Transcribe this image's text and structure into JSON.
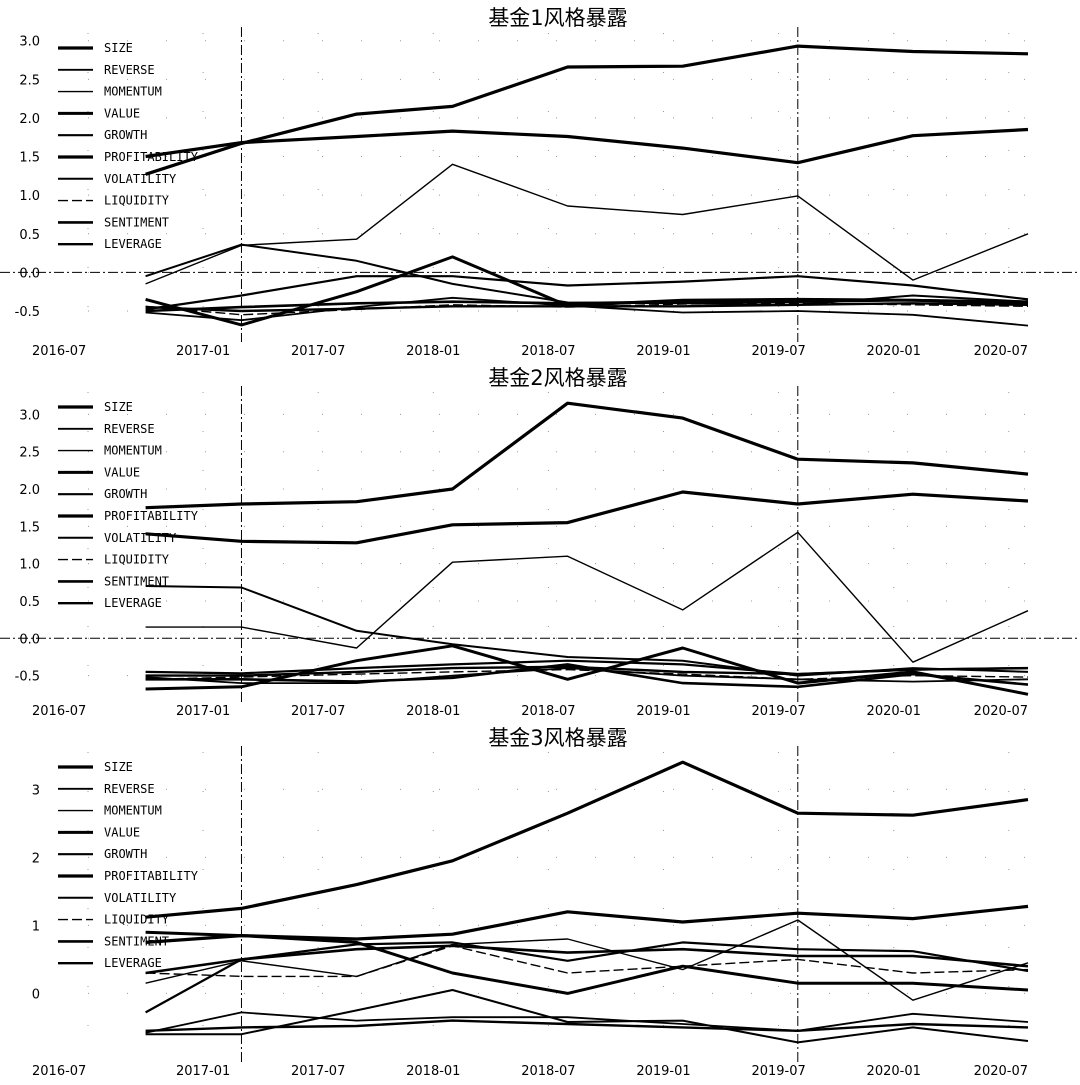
{
  "chart_data": [
    {
      "type": "line",
      "title": "基金1风格暴露",
      "xlabel": "",
      "ylabel": "",
      "x": [
        "2016-10",
        "2017-03",
        "2017-09",
        "2018-02",
        "2018-08",
        "2019-02",
        "2019-08",
        "2020-02",
        "2020-08"
      ],
      "x_ticks": [
        "2016-07",
        "2017-01",
        "2017-07",
        "2018-01",
        "2018-07",
        "2019-01",
        "2019-07",
        "2020-01",
        "2020-07"
      ],
      "y_ticks": [
        "-0.5",
        "0.0",
        "0.5",
        "1.0",
        "1.5",
        "2.0",
        "2.5",
        "3.0"
      ],
      "ylim": [
        -0.85,
        3.1
      ],
      "xlim": [
        "2016-07",
        "2020-08"
      ],
      "hline_y": 0.0,
      "vlines_x": [
        "2017-03",
        "2019-08"
      ],
      "grid": "dotted",
      "legend_position": "top-left",
      "series": [
        {
          "name": "SIZE",
          "values": [
            1.27,
            1.67,
            2.05,
            2.15,
            2.66,
            2.67,
            2.93,
            2.86,
            2.83
          ]
        },
        {
          "name": "REVERSE",
          "values": [
            -0.52,
            -0.62,
            -0.45,
            -0.33,
            -0.43,
            -0.52,
            -0.5,
            -0.55,
            -0.69
          ]
        },
        {
          "name": "MOMENTUM",
          "values": [
            -0.15,
            0.35,
            0.43,
            1.4,
            0.86,
            0.75,
            0.99,
            -0.1,
            0.5
          ]
        },
        {
          "name": "VALUE",
          "values": [
            -0.35,
            -0.68,
            -0.25,
            0.2,
            -0.43,
            -0.36,
            -0.35,
            -0.36,
            -0.4
          ]
        },
        {
          "name": "GROWTH",
          "values": [
            -0.48,
            -0.3,
            -0.05,
            -0.05,
            -0.17,
            -0.12,
            -0.05,
            -0.17,
            -0.35
          ]
        },
        {
          "name": "PROFITABILITY",
          "values": [
            1.5,
            1.68,
            1.76,
            1.83,
            1.76,
            1.61,
            1.42,
            1.77,
            1.85
          ]
        },
        {
          "name": "VOLATILITY",
          "values": [
            -0.05,
            0.36,
            0.15,
            -0.15,
            -0.39,
            -0.4,
            -0.42,
            -0.3,
            -0.38
          ]
        },
        {
          "name": "LIQUIDITY",
          "values": [
            -0.44,
            -0.55,
            -0.48,
            -0.42,
            -0.45,
            -0.41,
            -0.4,
            -0.42,
            -0.44
          ]
        },
        {
          "name": "SENTIMENT",
          "values": [
            -0.5,
            -0.45,
            -0.4,
            -0.38,
            -0.4,
            -0.38,
            -0.38,
            -0.36,
            -0.38
          ]
        },
        {
          "name": "LEVERAGE",
          "values": [
            -0.45,
            -0.5,
            -0.47,
            -0.44,
            -0.44,
            -0.44,
            -0.42,
            -0.4,
            -0.42
          ]
        }
      ]
    },
    {
      "type": "line",
      "title": "基金2风格暴露",
      "xlabel": "",
      "ylabel": "",
      "x": [
        "2016-10",
        "2017-03",
        "2017-09",
        "2018-02",
        "2018-08",
        "2019-02",
        "2019-08",
        "2020-02",
        "2020-08"
      ],
      "x_ticks": [
        "2016-07",
        "2017-01",
        "2017-07",
        "2018-01",
        "2018-07",
        "2019-01",
        "2019-07",
        "2020-01",
        "2020-07"
      ],
      "y_ticks": [
        "-0.5",
        "0.0",
        "0.5",
        "1.0",
        "1.5",
        "2.0",
        "2.5",
        "3.0"
      ],
      "ylim": [
        -0.8,
        3.3
      ],
      "xlim": [
        "2016-07",
        "2020-08"
      ],
      "hline_y": 0.0,
      "vlines_x": [
        "2017-03",
        "2019-08"
      ],
      "grid": "dotted",
      "legend_position": "top-left",
      "series": [
        {
          "name": "SIZE",
          "values": [
            1.75,
            1.8,
            1.83,
            2.0,
            3.15,
            2.95,
            2.4,
            2.35,
            2.2
          ]
        },
        {
          "name": "REVERSE",
          "values": [
            -0.52,
            -0.6,
            -0.6,
            -0.5,
            -0.4,
            -0.5,
            -0.55,
            -0.58,
            -0.55
          ]
        },
        {
          "name": "MOMENTUM",
          "values": [
            0.15,
            0.15,
            -0.13,
            1.02,
            1.1,
            0.38,
            1.42,
            -0.32,
            0.37
          ]
        },
        {
          "name": "VALUE",
          "values": [
            -0.68,
            -0.65,
            -0.3,
            -0.1,
            -0.55,
            -0.13,
            -0.6,
            -0.45,
            -0.75
          ]
        },
        {
          "name": "GROWTH",
          "values": [
            -0.45,
            -0.47,
            -0.4,
            -0.35,
            -0.3,
            -0.35,
            -0.48,
            -0.42,
            -0.4
          ]
        },
        {
          "name": "PROFITABILITY",
          "values": [
            1.4,
            1.3,
            1.28,
            1.52,
            1.55,
            1.96,
            1.8,
            1.93,
            1.84
          ]
        },
        {
          "name": "VOLATILITY",
          "values": [
            0.7,
            0.68,
            0.1,
            -0.08,
            -0.25,
            -0.3,
            -0.5,
            -0.4,
            -0.45
          ]
        },
        {
          "name": "LIQUIDITY",
          "values": [
            -0.55,
            -0.52,
            -0.48,
            -0.45,
            -0.42,
            -0.48,
            -0.55,
            -0.5,
            -0.52
          ]
        },
        {
          "name": "SENTIMENT",
          "values": [
            -0.55,
            -0.55,
            -0.58,
            -0.53,
            -0.35,
            -0.6,
            -0.65,
            -0.48,
            -0.62
          ]
        },
        {
          "name": "LEVERAGE",
          "values": [
            -0.5,
            -0.5,
            -0.45,
            -0.4,
            -0.38,
            -0.45,
            -0.48,
            -0.42,
            -0.4
          ]
        }
      ]
    },
    {
      "type": "line",
      "title": "基金3风格暴露",
      "xlabel": "",
      "ylabel": "",
      "x": [
        "2016-10",
        "2017-03",
        "2017-09",
        "2018-02",
        "2018-08",
        "2019-02",
        "2019-08",
        "2020-02",
        "2020-08"
      ],
      "x_ticks": [
        "2016-07",
        "2017-01",
        "2017-07",
        "2018-01",
        "2018-07",
        "2019-01",
        "2019-07",
        "2020-01",
        "2020-07"
      ],
      "y_ticks": [
        "0",
        "1",
        "2",
        "3"
      ],
      "ylim": [
        -0.95,
        3.55
      ],
      "xlim": [
        "2016-07",
        "2020-08"
      ],
      "hline_y": null,
      "vlines_x": [
        "2017-03",
        "2019-08"
      ],
      "grid": "dotted",
      "legend_position": "top-left",
      "series": [
        {
          "name": "SIZE",
          "values": [
            1.12,
            1.25,
            1.6,
            1.95,
            2.65,
            3.4,
            2.65,
            2.62,
            2.85
          ]
        },
        {
          "name": "REVERSE",
          "values": [
            -0.58,
            -0.28,
            -0.4,
            -0.35,
            -0.35,
            -0.45,
            -0.55,
            -0.3,
            -0.42
          ]
        },
        {
          "name": "MOMENTUM",
          "values": [
            0.15,
            0.48,
            0.25,
            0.72,
            0.8,
            0.35,
            1.08,
            -0.1,
            0.45
          ]
        },
        {
          "name": "VALUE",
          "values": [
            0.9,
            0.85,
            0.75,
            0.3,
            0.0,
            0.4,
            0.15,
            0.15,
            0.05
          ]
        },
        {
          "name": "GROWTH",
          "values": [
            -0.28,
            0.5,
            0.72,
            0.75,
            0.48,
            0.75,
            0.65,
            0.62,
            0.33
          ]
        },
        {
          "name": "PROFITABILITY",
          "values": [
            0.75,
            0.85,
            0.8,
            0.87,
            1.2,
            1.05,
            1.18,
            1.1,
            1.28
          ]
        },
        {
          "name": "VOLATILITY",
          "values": [
            -0.6,
            -0.6,
            -0.25,
            0.05,
            -0.42,
            -0.4,
            -0.72,
            -0.5,
            -0.7
          ]
        },
        {
          "name": "LIQUIDITY",
          "values": [
            0.3,
            0.25,
            0.25,
            0.7,
            0.3,
            0.4,
            0.5,
            0.3,
            0.35
          ]
        },
        {
          "name": "SENTIMENT",
          "values": [
            0.3,
            0.5,
            0.65,
            0.7,
            0.6,
            0.65,
            0.55,
            0.55,
            0.4
          ]
        },
        {
          "name": "LEVERAGE",
          "values": [
            -0.55,
            -0.5,
            -0.48,
            -0.4,
            -0.45,
            -0.5,
            -0.55,
            -0.45,
            -0.5
          ]
        }
      ]
    }
  ]
}
